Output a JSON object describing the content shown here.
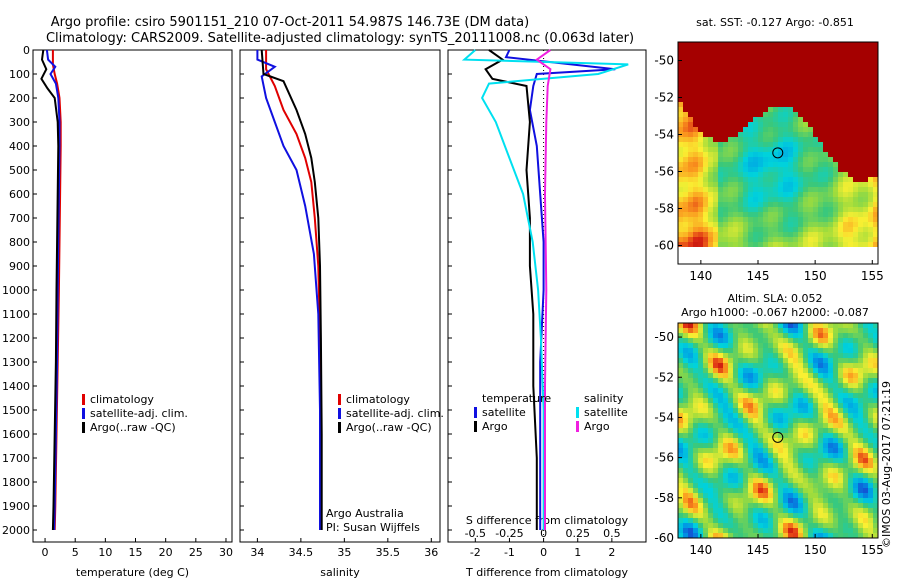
{
  "header": {
    "line1": "Argo profile: csiro 5901151_210 07-Oct-2011 54.987S 146.73E (DM data)",
    "line2": "Climatology: CARS2009. Satellite-adjusted climatology: synTS_20111008.nc (0.063d later)"
  },
  "colors": {
    "climatology": "#e00000",
    "satellite": "#1010e0",
    "argo": "#000000",
    "sat_salinity": "#00e0f0",
    "argo_salinity": "#f020e0"
  },
  "chart_data": [
    {
      "type": "line",
      "id": "temperature",
      "xlabel": "temperature (deg C)",
      "xlim": [
        -2,
        31
      ],
      "ylim": [
        2050,
        0
      ],
      "xticks": [
        0,
        5,
        10,
        15,
        20,
        25,
        30
      ],
      "yticks": [
        0,
        100,
        200,
        300,
        400,
        500,
        600,
        700,
        800,
        900,
        1000,
        1100,
        1200,
        1300,
        1400,
        1500,
        1600,
        1700,
        1800,
        1900,
        2000
      ],
      "legend": [
        "climatology",
        "satellite-adj. clim.",
        "Argo(..raw -QC)"
      ],
      "series": [
        {
          "name": "climatology",
          "color": "#e00000",
          "points": [
            [
              1.3,
              0
            ],
            [
              1.3,
              60
            ],
            [
              1.6,
              100
            ],
            [
              2.0,
              140
            ],
            [
              2.4,
              200
            ],
            [
              2.6,
              300
            ],
            [
              2.6,
              400
            ],
            [
              2.5,
              600
            ],
            [
              2.4,
              800
            ],
            [
              2.3,
              1000
            ],
            [
              2.1,
              1300
            ],
            [
              1.9,
              1600
            ],
            [
              1.7,
              1900
            ],
            [
              1.6,
              2000
            ]
          ]
        },
        {
          "name": "satellite-adj. clim.",
          "color": "#1010e0",
          "points": [
            [
              0.3,
              0
            ],
            [
              0.5,
              40
            ],
            [
              1.7,
              70
            ],
            [
              0.9,
              100
            ],
            [
              1.8,
              140
            ],
            [
              2.2,
              200
            ],
            [
              2.4,
              300
            ],
            [
              2.4,
              400
            ],
            [
              2.3,
              600
            ],
            [
              2.2,
              800
            ],
            [
              2.1,
              1000
            ],
            [
              2.0,
              1300
            ],
            [
              1.8,
              1600
            ],
            [
              1.6,
              1900
            ],
            [
              1.5,
              2000
            ]
          ]
        },
        {
          "name": "Argo(..raw -QC)",
          "color": "#000000",
          "points": [
            [
              -0.3,
              0
            ],
            [
              -0.5,
              40
            ],
            [
              0.2,
              80
            ],
            [
              -0.6,
              120
            ],
            [
              0.4,
              160
            ],
            [
              1.6,
              200
            ],
            [
              2.1,
              300
            ],
            [
              2.2,
              400
            ],
            [
              2.1,
              600
            ],
            [
              2.0,
              800
            ],
            [
              1.9,
              1000
            ],
            [
              1.8,
              1300
            ],
            [
              1.6,
              1600
            ],
            [
              1.4,
              1900
            ],
            [
              1.3,
              2000
            ]
          ]
        }
      ]
    },
    {
      "type": "line",
      "id": "salinity",
      "xlabel": "salinity",
      "xlim": [
        33.8,
        36.1
      ],
      "ylim": [
        2050,
        0
      ],
      "xticks": [
        34,
        34.5,
        35,
        35.5,
        36
      ],
      "legend": [
        "climatology",
        "satellite-adj. clim.",
        "Argo(..raw -QC)"
      ],
      "annotations": [
        "Argo Australia",
        "PI: Susan Wijffels"
      ],
      "series": [
        {
          "name": "climatology",
          "color": "#e00000",
          "points": [
            [
              34.1,
              0
            ],
            [
              34.1,
              80
            ],
            [
              34.2,
              150
            ],
            [
              34.3,
              250
            ],
            [
              34.45,
              350
            ],
            [
              34.55,
              450
            ],
            [
              34.62,
              550
            ],
            [
              34.66,
              700
            ],
            [
              34.7,
              900
            ],
            [
              34.72,
              1200
            ],
            [
              34.73,
              1600
            ],
            [
              34.73,
              2000
            ]
          ]
        },
        {
          "name": "satellite-adj. clim.",
          "color": "#1010e0",
          "points": [
            [
              34.0,
              0
            ],
            [
              34.0,
              40
            ],
            [
              34.2,
              70
            ],
            [
              34.05,
              110
            ],
            [
              34.1,
              200
            ],
            [
              34.2,
              300
            ],
            [
              34.3,
              400
            ],
            [
              34.45,
              500
            ],
            [
              34.55,
              650
            ],
            [
              34.65,
              850
            ],
            [
              34.7,
              1100
            ],
            [
              34.72,
              1500
            ],
            [
              34.72,
              2000
            ]
          ]
        },
        {
          "name": "Argo(..raw -QC)",
          "color": "#000000",
          "points": [
            [
              34.05,
              0
            ],
            [
              34.07,
              100
            ],
            [
              34.3,
              130
            ],
            [
              34.45,
              250
            ],
            [
              34.55,
              350
            ],
            [
              34.62,
              450
            ],
            [
              34.66,
              550
            ],
            [
              34.7,
              700
            ],
            [
              34.72,
              900
            ],
            [
              34.73,
              1200
            ],
            [
              34.74,
              1600
            ],
            [
              34.74,
              2000
            ]
          ]
        }
      ]
    },
    {
      "type": "line",
      "id": "difference",
      "xlabel": "T difference from climatology",
      "xlabel_top": "S difference from climatology",
      "xlim": [
        -2.8,
        3.0
      ],
      "xlim_s": [
        -0.7,
        0.75
      ],
      "ylim": [
        2050,
        0
      ],
      "xticks": [
        -2,
        -1,
        0,
        1,
        2
      ],
      "xticks_s": [
        -0.5,
        -0.25,
        0,
        0.25,
        0.5
      ],
      "legend_headers": [
        "temperature",
        "salinity"
      ],
      "legend": [
        "satellite",
        "Argo",
        "satellite",
        "Argo"
      ],
      "series": [
        {
          "name": "satellite",
          "group": "temperature",
          "color": "#1010e0",
          "points": [
            [
              -1.0,
              0
            ],
            [
              -1.1,
              30
            ],
            [
              2.1,
              80
            ],
            [
              -0.2,
              100
            ],
            [
              -0.3,
              150
            ],
            [
              -0.4,
              250
            ],
            [
              -0.2,
              400
            ],
            [
              -0.1,
              600
            ],
            [
              0.0,
              800
            ],
            [
              0.0,
              1000
            ],
            [
              -0.1,
              1300
            ],
            [
              -0.1,
              1600
            ],
            [
              -0.1,
              1900
            ],
            [
              -0.1,
              2000
            ]
          ]
        },
        {
          "name": "Argo",
          "group": "temperature",
          "color": "#000000",
          "points": [
            [
              -1.6,
              0
            ],
            [
              -1.2,
              40
            ],
            [
              -1.7,
              80
            ],
            [
              -1.5,
              120
            ],
            [
              -0.5,
              150
            ],
            [
              -0.4,
              300
            ],
            [
              -0.5,
              500
            ],
            [
              -0.4,
              700
            ],
            [
              -0.4,
              900
            ],
            [
              -0.3,
              1100
            ],
            [
              -0.3,
              1400
            ],
            [
              -0.2,
              1700
            ],
            [
              -0.2,
              2000
            ]
          ]
        },
        {
          "name": "satellite",
          "group": "salinity",
          "color": "#00e0f0",
          "points": [
            [
              -0.5,
              0
            ],
            [
              -0.58,
              40
            ],
            [
              0.62,
              60
            ],
            [
              0.4,
              100
            ],
            [
              -0.4,
              140
            ],
            [
              -0.45,
              200
            ],
            [
              -0.35,
              300
            ],
            [
              -0.25,
              450
            ],
            [
              -0.15,
              600
            ],
            [
              -0.08,
              800
            ],
            [
              -0.04,
              1000
            ],
            [
              -0.02,
              1200
            ],
            [
              0.0,
              1500
            ],
            [
              0.0,
              2000
            ]
          ]
        },
        {
          "name": "Argo",
          "group": "salinity",
          "color": "#f020e0",
          "points": [
            [
              0.05,
              0
            ],
            [
              -0.05,
              40
            ],
            [
              0.05,
              80
            ],
            [
              0.03,
              150
            ],
            [
              0.02,
              300
            ],
            [
              0.01,
              600
            ],
            [
              0.02,
              1000
            ],
            [
              0.01,
              1400
            ],
            [
              0.01,
              2000
            ]
          ]
        }
      ]
    },
    {
      "type": "heatmap",
      "id": "sst-map",
      "title": "sat. SST: -0.127 Argo: -0.851",
      "xticks": [
        140,
        145,
        150,
        155
      ],
      "yticks": [
        -50,
        -52,
        -54,
        -56,
        -58,
        -60
      ],
      "xlim": [
        138,
        155.5
      ],
      "ylim": [
        -61,
        -49
      ],
      "marker": [
        146.73,
        -54.99
      ]
    },
    {
      "type": "heatmap",
      "id": "sla-map",
      "title": "Altim. SLA: 0.052",
      "subtitle": "Argo h1000: -0.067 h2000: -0.087",
      "xticks": [
        140,
        145,
        150,
        155
      ],
      "yticks": [
        -50,
        -52,
        -54,
        -56,
        -58,
        -60
      ],
      "xlim": [
        138,
        155.5
      ],
      "ylim": [
        -60,
        -49.3
      ],
      "marker": [
        146.73,
        -54.99
      ]
    }
  ],
  "footer": {
    "stamp": "©IMOS 03-Aug-2017 07:21:19"
  }
}
